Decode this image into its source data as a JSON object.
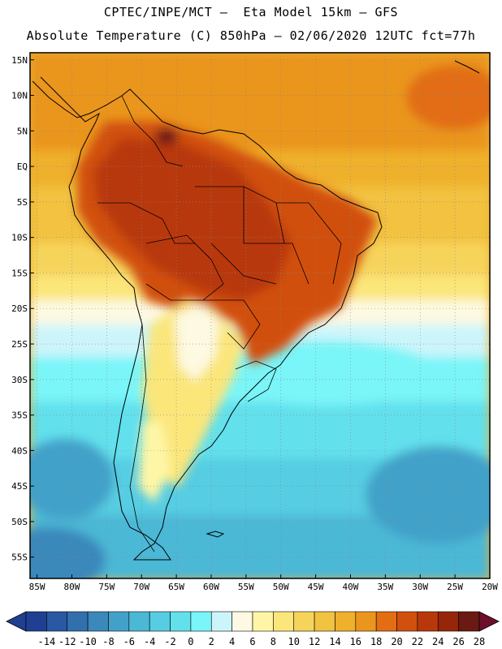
{
  "header": {
    "line1": "CPTEC/INPE/MCT –  Eta Model 15km – GFS",
    "line2": "Absolute Temperature (C) 850hPa – 02/06/2020 12UTC fct=77h"
  },
  "map": {
    "lat_range": [
      -58,
      16
    ],
    "lon_range": [
      -86,
      -20
    ],
    "lat_labels": [
      "15N",
      "10N",
      "5N",
      "EQ",
      "5S",
      "10S",
      "15S",
      "20S",
      "25S",
      "30S",
      "35S",
      "40S",
      "45S",
      "50S",
      "55S"
    ],
    "lat_values": [
      15,
      10,
      5,
      0,
      -5,
      -10,
      -15,
      -20,
      -25,
      -30,
      -35,
      -40,
      -45,
      -50,
      -55
    ],
    "lon_labels": [
      "85W",
      "80W",
      "75W",
      "70W",
      "65W",
      "60W",
      "55W",
      "50W",
      "45W",
      "40W",
      "35W",
      "30W",
      "25W",
      "20W"
    ],
    "lon_values": [
      -85,
      -80,
      -75,
      -70,
      -65,
      -60,
      -55,
      -50,
      -45,
      -40,
      -35,
      -30,
      -25,
      -20
    ],
    "grid": true
  },
  "colorbar": {
    "labels": [
      "-14",
      "-12",
      "-10",
      "-8",
      "-6",
      "-4",
      "-2",
      "0",
      "2",
      "4",
      "6",
      "8",
      "10",
      "12",
      "14",
      "16",
      "18",
      "20",
      "22",
      "24",
      "26",
      "28"
    ],
    "colors": [
      "#1f3f92",
      "#2a58a3",
      "#3270ad",
      "#3b88bb",
      "#43a1c9",
      "#4bb8d6",
      "#56cde2",
      "#62e0ec",
      "#7af5f8",
      "#ccf5fb",
      "#fdf9e2",
      "#fef6a6",
      "#fbe67a",
      "#f6d45c",
      "#f2c241",
      "#efb02c",
      "#ea951d",
      "#e26d12",
      "#d1500e",
      "#b8380b",
      "#962609",
      "#6a1a12"
    ]
  }
}
